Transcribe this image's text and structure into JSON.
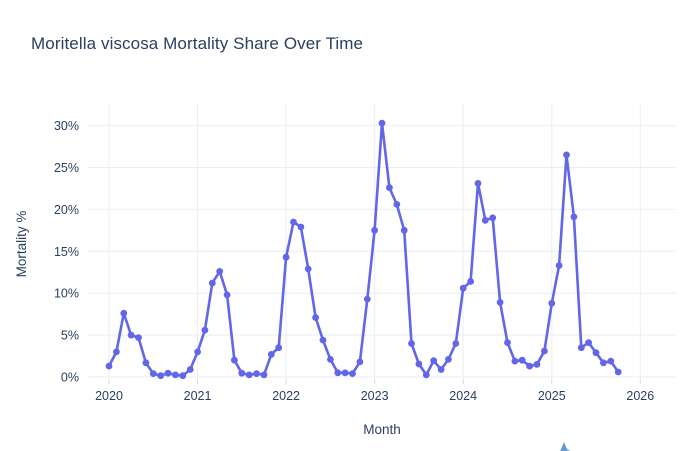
{
  "page": {
    "title": "Moritella viscosa Mortality Share Over Time"
  },
  "chart_data": {
    "type": "line",
    "title": "Moritella viscosa Mortality Share Over Time",
    "xlabel": "Month",
    "ylabel": "Mortality %",
    "legend": "none",
    "grid": true,
    "marker": "circle",
    "line_color": "#6266e8",
    "grid_color": "#e9eef6",
    "tick_color": "#d4dbe6",
    "text_color": "#2a3f5f",
    "x_tick_labels": [
      "2020",
      "2021",
      "2022",
      "2023",
      "2024",
      "2025",
      "2026"
    ],
    "y_ticks": [
      0,
      5,
      10,
      15,
      20,
      25,
      30
    ],
    "y_tick_labels": [
      "0%",
      "5%",
      "10%",
      "15%",
      "20%",
      "25%",
      "30%"
    ],
    "ylim": [
      -0.3,
      32.6
    ],
    "x_range_approx": [
      "2019-10",
      "2026-06"
    ],
    "months": [
      "2020-01",
      "2020-02",
      "2020-03",
      "2020-04",
      "2020-05",
      "2020-06",
      "2020-07",
      "2020-08",
      "2020-09",
      "2020-10",
      "2020-11",
      "2020-12",
      "2021-01",
      "2021-02",
      "2021-03",
      "2021-04",
      "2021-05",
      "2021-06",
      "2021-07",
      "2021-08",
      "2021-09",
      "2021-10",
      "2021-11",
      "2021-12",
      "2022-01",
      "2022-02",
      "2022-03",
      "2022-04",
      "2022-05",
      "2022-06",
      "2022-07",
      "2022-08",
      "2022-09",
      "2022-10",
      "2022-11",
      "2022-12",
      "2023-01",
      "2023-02",
      "2023-03",
      "2023-04",
      "2023-05",
      "2023-06",
      "2023-07",
      "2023-08",
      "2023-09",
      "2023-10",
      "2023-11",
      "2023-12",
      "2024-01",
      "2024-02",
      "2024-03",
      "2024-04",
      "2024-05",
      "2024-06",
      "2024-07",
      "2024-08",
      "2024-09",
      "2024-10",
      "2024-11",
      "2024-12",
      "2025-01",
      "2025-02",
      "2025-03",
      "2025-04",
      "2025-05",
      "2025-06",
      "2025-07",
      "2025-08",
      "2025-09",
      "2025-10"
    ],
    "values": [
      1.3,
      3.0,
      7.6,
      5.0,
      4.7,
      1.7,
      0.4,
      0.15,
      0.45,
      0.25,
      0.15,
      0.9,
      3.0,
      5.6,
      11.2,
      12.6,
      9.8,
      2.0,
      0.45,
      0.25,
      0.4,
      0.25,
      2.7,
      3.5,
      14.3,
      18.5,
      17.9,
      12.9,
      7.1,
      4.4,
      2.1,
      0.5,
      0.5,
      0.4,
      1.8,
      9.3,
      17.5,
      30.3,
      22.6,
      20.6,
      17.5,
      4.0,
      1.55,
      0.25,
      1.95,
      0.9,
      2.1,
      4.0,
      10.6,
      11.4,
      23.1,
      18.7,
      19.0,
      8.9,
      4.1,
      1.9,
      2.0,
      1.3,
      1.5,
      3.1,
      8.8,
      13.3,
      26.5,
      19.1,
      3.5,
      4.1,
      2.9,
      1.7,
      1.9,
      0.6
    ]
  },
  "footer": {
    "logo_icon": "brand-logo-icon"
  }
}
